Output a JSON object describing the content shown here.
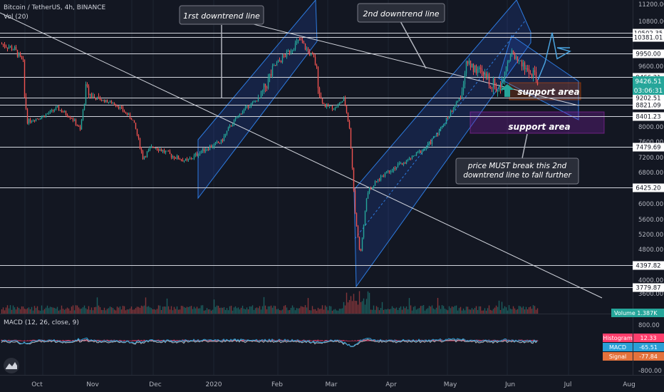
{
  "header": {
    "title": "Bitcoin / TetherUS, 4h, BINANCE",
    "volume_indicator": "Vol (20)",
    "macd_indicator": "MACD (12, 26, close, 9)"
  },
  "chart_data": {
    "type": "candlestick",
    "symbol": "Bitcoin / TetherUS",
    "interval": "4h",
    "exchange": "BINANCE",
    "y_axis_ticks": [
      11200,
      10800,
      9600,
      9200,
      8800,
      8000,
      7600,
      7200,
      6800,
      6000,
      5600,
      5200,
      4800,
      4000,
      3600
    ],
    "x_axis_labels": [
      "Oct",
      "Nov",
      "Dec",
      "2020",
      "Feb",
      "Mar",
      "Apr",
      "May",
      "Jun",
      "Jul",
      "Aug"
    ],
    "ylim": [
      3500,
      11500
    ],
    "horizontal_levels": [
      {
        "value": 10502.35,
        "label": "10502.35"
      },
      {
        "value": 10381.01,
        "label": "10381.01"
      },
      {
        "value": 9950.0,
        "label": "9950.00"
      },
      {
        "value": 9466.21,
        "label": "9466.21"
      },
      {
        "value": 9202.51,
        "label": "9202.51"
      },
      {
        "value": 8821.09,
        "label": "8821.09"
      },
      {
        "value": 8401.23,
        "label": "8401.23"
      },
      {
        "value": 7479.69,
        "label": "7479.69"
      },
      {
        "value": 6425.2,
        "label": "6425.20"
      },
      {
        "value": 4397.82,
        "label": "4397.82"
      },
      {
        "value": 3779.87,
        "label": "3779.87"
      }
    ],
    "current_price": {
      "value": 9426.51,
      "label": "9426.51",
      "countdown": "03:06:31"
    },
    "price_path": [
      {
        "x": 2,
        "y": 10200
      },
      {
        "x": 20,
        "y": 10050
      },
      {
        "x": 32,
        "y": 9700
      },
      {
        "x": 38,
        "y": 8200
      },
      {
        "x": 60,
        "y": 8400
      },
      {
        "x": 80,
        "y": 8700
      },
      {
        "x": 100,
        "y": 8350
      },
      {
        "x": 112,
        "y": 7900
      },
      {
        "x": 120,
        "y": 9300
      },
      {
        "x": 135,
        "y": 9150
      },
      {
        "x": 160,
        "y": 8900
      },
      {
        "x": 185,
        "y": 8300
      },
      {
        "x": 200,
        "y": 7200
      },
      {
        "x": 215,
        "y": 7500
      },
      {
        "x": 240,
        "y": 7250
      },
      {
        "x": 262,
        "y": 7100
      },
      {
        "x": 285,
        "y": 7400
      },
      {
        "x": 310,
        "y": 7600
      },
      {
        "x": 340,
        "y": 8600
      },
      {
        "x": 370,
        "y": 9300
      },
      {
        "x": 400,
        "y": 9900
      },
      {
        "x": 420,
        "y": 10300
      },
      {
        "x": 440,
        "y": 9800
      },
      {
        "x": 455,
        "y": 8800
      },
      {
        "x": 470,
        "y": 8700
      },
      {
        "x": 482,
        "y": 9100
      },
      {
        "x": 490,
        "y": 8000
      },
      {
        "x": 498,
        "y": 5800
      },
      {
        "x": 505,
        "y": 4600
      },
      {
        "x": 515,
        "y": 6300
      },
      {
        "x": 540,
        "y": 6800
      },
      {
        "x": 570,
        "y": 7100
      },
      {
        "x": 600,
        "y": 7500
      },
      {
        "x": 620,
        "y": 8000
      },
      {
        "x": 640,
        "y": 8900
      },
      {
        "x": 655,
        "y": 9700
      },
      {
        "x": 675,
        "y": 9500
      },
      {
        "x": 700,
        "y": 9300
      },
      {
        "x": 718,
        "y": 9950
      },
      {
        "x": 735,
        "y": 9600
      },
      {
        "x": 755,
        "y": 9400
      }
    ],
    "projection_path": [
      {
        "x": 755,
        "y": 9426
      },
      {
        "x": 765,
        "y": 9700
      },
      {
        "x": 775,
        "y": 10500
      },
      {
        "x": 782,
        "y": 9800
      },
      {
        "x": 800,
        "y": 10000
      }
    ],
    "macd": {
      "histogram": {
        "label": "Histogram",
        "value": "12.33",
        "color": "#ff3e6c"
      },
      "macd": {
        "label": "MACD",
        "value": "-65.51",
        "color": "#2a9fd6"
      },
      "signal": {
        "label": "Signal",
        "value": "-77.84",
        "color": "#e4723c"
      },
      "ticks": [
        "800.00",
        "-800.00"
      ]
    },
    "volume": {
      "label": "Volume",
      "value": "1.387K"
    },
    "annotations": [
      {
        "text": "1rst downtrend line",
        "type": "callout"
      },
      {
        "text": "2nd downtrend line",
        "type": "callout"
      },
      {
        "text": "support area",
        "type": "zone"
      },
      {
        "text": "support area",
        "type": "zone"
      },
      {
        "text": "price MUST break this 2nd downtrend line to fall further",
        "type": "callout"
      }
    ],
    "colors": {
      "background": "#131722",
      "up": "#26a69a",
      "down": "#ef5350",
      "channel": "#2962ff",
      "support_zone_1": "#e65100",
      "support_zone_2": "#7b1fa2"
    }
  }
}
